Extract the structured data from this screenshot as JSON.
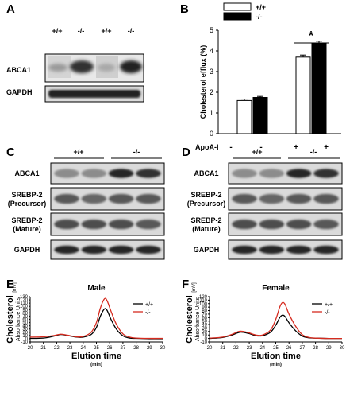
{
  "panels": {
    "A": {
      "letter": "A",
      "lanes": [
        "+/+",
        "-/-",
        "+/+",
        "-/-"
      ],
      "rows": [
        "ABCA1",
        "GAPDH"
      ]
    },
    "B": {
      "letter": "B",
      "legend": [
        "+/+",
        "-/-"
      ],
      "significance": "*",
      "treatment_label": "ApoA-I",
      "treatment_values": [
        "-",
        "-",
        "+",
        "+"
      ]
    },
    "C": {
      "letter": "C",
      "groups": [
        "+/+",
        "-/-"
      ],
      "rows": [
        "ABCA1",
        "SREBP-2\n(Precursor)",
        "SREBP-2\n(Mature)",
        "GAPDH"
      ]
    },
    "D": {
      "letter": "D",
      "groups": [
        "+/+",
        "-/-"
      ],
      "rows": [
        "ABCA1",
        "SREBP-2\n(Precursor)",
        "SREBP-2\n(Mature)",
        "GAPDH"
      ]
    },
    "E": {
      "letter": "E",
      "title": "Male"
    },
    "F": {
      "letter": "F",
      "title": "Female"
    }
  },
  "chart_data": [
    {
      "type": "bar",
      "panel": "B",
      "ylabel": "Cholesterol efflux (%)",
      "ylim": [
        0,
        5
      ],
      "yticks": [
        0,
        1,
        2,
        3,
        4,
        5
      ],
      "legend_placement": "top",
      "colors": {
        "+/+": "#ffffff",
        "-/-": "#000000"
      },
      "series": [
        {
          "name": "+/+",
          "values": [
            1.6,
            3.7
          ],
          "errors": [
            0.07,
            0.1
          ]
        },
        {
          "name": "-/-",
          "values": [
            1.75,
            4.35
          ],
          "errors": [
            0.05,
            0.12
          ]
        }
      ]
    },
    {
      "type": "line",
      "panel": "E",
      "title": "Male",
      "ylabel": "Cholesterol",
      "ylabel2": "Absorbance Units",
      "yunit": "[mV]",
      "xlabel": "Elution time",
      "xunit": "(min)",
      "xlim": [
        20,
        30
      ],
      "ylim": [
        -10,
        130
      ],
      "xticks": [
        20,
        21,
        22,
        23,
        24,
        25,
        26,
        27,
        28,
        29,
        30
      ],
      "yticks": [
        -10,
        0,
        10,
        20,
        30,
        40,
        50,
        60,
        70,
        80,
        90,
        100,
        110,
        120,
        130
      ],
      "legend_placement": "top-right",
      "series": [
        {
          "name": "+/+",
          "color": "#000000",
          "x": [
            20,
            21,
            21.8,
            22.3,
            22.8,
            23.5,
            24,
            24.6,
            25,
            25.3,
            25.6,
            25.8,
            26.1,
            26.5,
            27,
            27.5,
            28,
            29,
            30
          ],
          "y": [
            1,
            2,
            8,
            13,
            10,
            5,
            5,
            13,
            35,
            70,
            92,
            88,
            60,
            30,
            9,
            2,
            1,
            0,
            0
          ]
        },
        {
          "name": "-/-",
          "color": "#d62b1f",
          "x": [
            20,
            21,
            21.8,
            22.3,
            22.8,
            23.5,
            24,
            24.6,
            25,
            25.3,
            25.6,
            25.8,
            26.1,
            26.5,
            27,
            27.5,
            28,
            29,
            30
          ],
          "y": [
            5,
            6,
            10,
            14,
            11,
            6,
            7,
            20,
            50,
            95,
            123,
            118,
            85,
            45,
            15,
            5,
            2,
            1,
            1
          ]
        }
      ]
    },
    {
      "type": "line",
      "panel": "F",
      "title": "Female",
      "ylabel": "Cholesterol",
      "ylabel2": "Absorbance Units",
      "yunit": "[mV]",
      "xlabel": "Elution time",
      "xunit": "(min)",
      "xlim": [
        20,
        30
      ],
      "ylim": [
        -10,
        120
      ],
      "xticks": [
        20,
        21,
        22,
        23,
        24,
        25,
        26,
        27,
        28,
        29,
        30
      ],
      "yticks": [
        -10,
        0,
        10,
        20,
        30,
        40,
        50,
        60,
        70,
        80,
        90,
        100,
        110,
        120
      ],
      "legend_placement": "top-right",
      "series": [
        {
          "name": "+/+",
          "color": "#000000",
          "x": [
            20,
            21,
            21.7,
            22.3,
            22.9,
            23.5,
            24,
            24.6,
            25,
            25.3,
            25.5,
            25.7,
            26,
            26.5,
            27,
            27.5,
            28,
            29,
            30
          ],
          "y": [
            0,
            3,
            10,
            18,
            15,
            8,
            8,
            18,
            38,
            60,
            67,
            63,
            45,
            22,
            7,
            2,
            1,
            0,
            0
          ]
        },
        {
          "name": "-/-",
          "color": "#d62b1f",
          "x": [
            20,
            21,
            21.7,
            22.3,
            22.9,
            23.5,
            24,
            24.6,
            25,
            25.3,
            25.5,
            25.7,
            26,
            26.5,
            27,
            27.5,
            28,
            29,
            30
          ],
          "y": [
            1,
            4,
            12,
            21,
            17,
            10,
            10,
            24,
            55,
            90,
            103,
            98,
            70,
            35,
            11,
            3,
            1,
            0,
            0
          ]
        }
      ]
    }
  ]
}
